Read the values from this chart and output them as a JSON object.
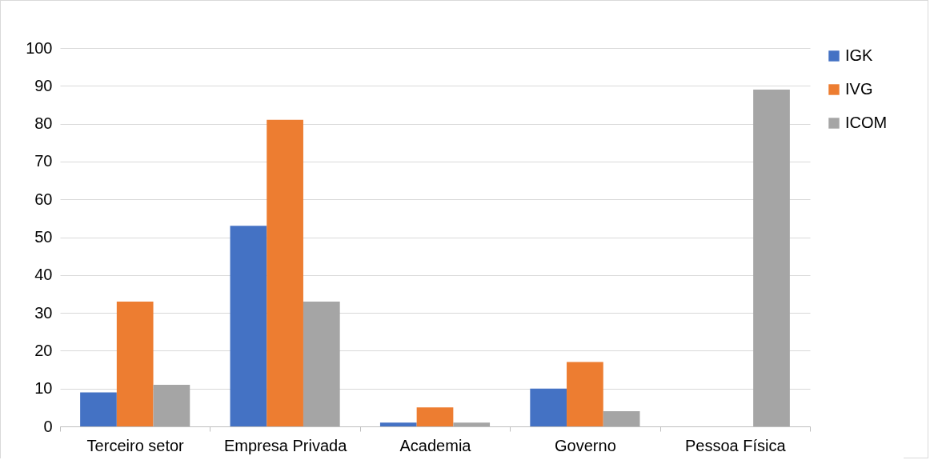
{
  "chart_data": {
    "type": "bar",
    "categories": [
      "Terceiro setor",
      "Empresa Privada",
      "Academia",
      "Governo",
      "Pessoa Física"
    ],
    "series": [
      {
        "name": "IGK",
        "color": "#4472c4",
        "values": [
          9,
          53,
          1,
          10,
          0
        ]
      },
      {
        "name": "IVG",
        "color": "#ed7d31",
        "values": [
          33,
          81,
          5,
          17,
          0
        ]
      },
      {
        "name": "ICOM",
        "color": "#a5a5a5",
        "values": [
          11,
          33,
          1,
          4,
          89
        ]
      }
    ],
    "ylim": [
      0,
      100
    ],
    "yticks": [
      0,
      10,
      20,
      30,
      40,
      50,
      60,
      70,
      80,
      90,
      100
    ],
    "grid": "y",
    "legend": "right"
  }
}
